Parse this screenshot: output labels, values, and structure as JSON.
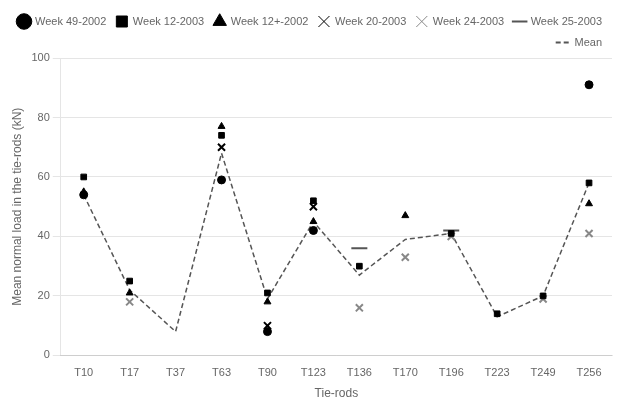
{
  "chart_data": {
    "type": "line",
    "xlabel": "Tie-rods",
    "ylabel": "Mean normal load in the tie-rods (kN)",
    "categories": [
      "T10",
      "T17",
      "T37",
      "T63",
      "T90",
      "T123",
      "T136",
      "T170",
      "T196",
      "T223",
      "T249",
      "T256"
    ],
    "series": [
      {
        "name": "Week 49-2002",
        "color": "#000000",
        "marker": "circle",
        "line_style": "none",
        "values": [
          54,
          null,
          null,
          59,
          8,
          42,
          null,
          null,
          null,
          null,
          null,
          91
        ]
      },
      {
        "name": "Week 12-2003",
        "color": "#000000",
        "marker": "square",
        "line_style": "none",
        "values": [
          60,
          25,
          null,
          74,
          21,
          52,
          30,
          null,
          41,
          14,
          20,
          58
        ]
      },
      {
        "name": "Week 12+-2002",
        "color": "#000000",
        "marker": "triangle",
        "line_style": "none",
        "values": [
          55,
          21,
          null,
          77,
          18,
          45,
          null,
          47,
          null,
          null,
          null,
          51
        ]
      },
      {
        "name": "Week 20-2003",
        "color": "#000000",
        "marker": "x",
        "line_style": "none",
        "values": [
          null,
          null,
          null,
          70,
          10,
          50,
          null,
          null,
          null,
          null,
          null,
          null
        ]
      },
      {
        "name": "Week 24-2003",
        "color": "#888888",
        "marker": "x",
        "line_style": "none",
        "values": [
          null,
          18,
          null,
          null,
          null,
          null,
          16,
          33,
          40,
          null,
          19,
          41
        ]
      },
      {
        "name": "Week 25-2003",
        "color": "#555555",
        "marker": "hline",
        "line_style": "none",
        "values": [
          null,
          null,
          null,
          null,
          null,
          null,
          36,
          null,
          42,
          null,
          null,
          null
        ]
      },
      {
        "name": "Mean",
        "color": "#555555",
        "marker": "none",
        "line_style": "dashed",
        "values": [
          54,
          22,
          8,
          68,
          19,
          45,
          27,
          39,
          41,
          13,
          20,
          58
        ]
      }
    ],
    "ylim": [
      0,
      100
    ],
    "yticks": [
      0,
      20,
      40,
      60,
      80,
      100
    ],
    "grid": "y",
    "legend": "upper right"
  }
}
